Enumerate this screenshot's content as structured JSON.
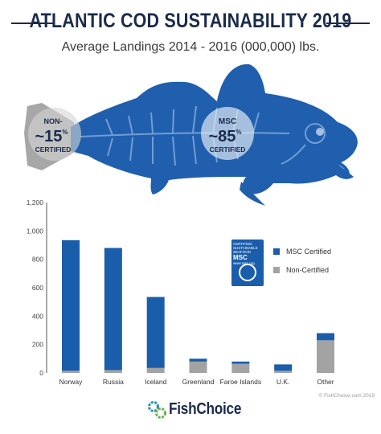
{
  "title": "ATLANTIC COD SUSTAINABILITY 2019",
  "subtitle": "Average Landings 2014 - 2016 (000,000) lbs.",
  "fish_callouts": {
    "non": {
      "label_top": "NON-",
      "value": "~15",
      "unit": "%",
      "label_bottom": "CERTIFIED"
    },
    "msc": {
      "label_top": "MSC",
      "value": "~85",
      "unit": "%",
      "label_bottom": "CERTIFIED"
    }
  },
  "legend": {
    "logo": {
      "line1": "CERTIFIED",
      "line2": "SUSTAINABLE",
      "line3": "SEAFOOD",
      "big": "MSC",
      "url": "www.msc.org"
    },
    "items": [
      "MSC Certified",
      "Non-Certified"
    ]
  },
  "colors": {
    "msc": "#1a5dab",
    "non": "#a3a3a3",
    "title": "#1a2b4c",
    "fish": "#1f5fae"
  },
  "footer": {
    "brand": "FishChoice",
    "copyright": "© FishChoice.com 2019"
  },
  "chart_data": {
    "type": "bar",
    "stacked": true,
    "categories": [
      "Norway",
      "Russia",
      "Iceland",
      "Greenland",
      "Faroe Islands",
      "U.K.",
      "Other"
    ],
    "series": [
      {
        "name": "Non-Certified",
        "values": [
          15,
          20,
          35,
          80,
          65,
          15,
          230
        ]
      },
      {
        "name": "MSC Certified",
        "values": [
          920,
          860,
          500,
          20,
          15,
          45,
          50
        ]
      }
    ],
    "ylim": [
      0,
      1200
    ],
    "yticks": [
      "0",
      "200",
      "400",
      "600",
      "800",
      "1,000",
      "1,200"
    ],
    "ytick_values": [
      0,
      200,
      400,
      600,
      800,
      1000,
      1200
    ],
    "grid": false,
    "legend_position": "top-right"
  }
}
